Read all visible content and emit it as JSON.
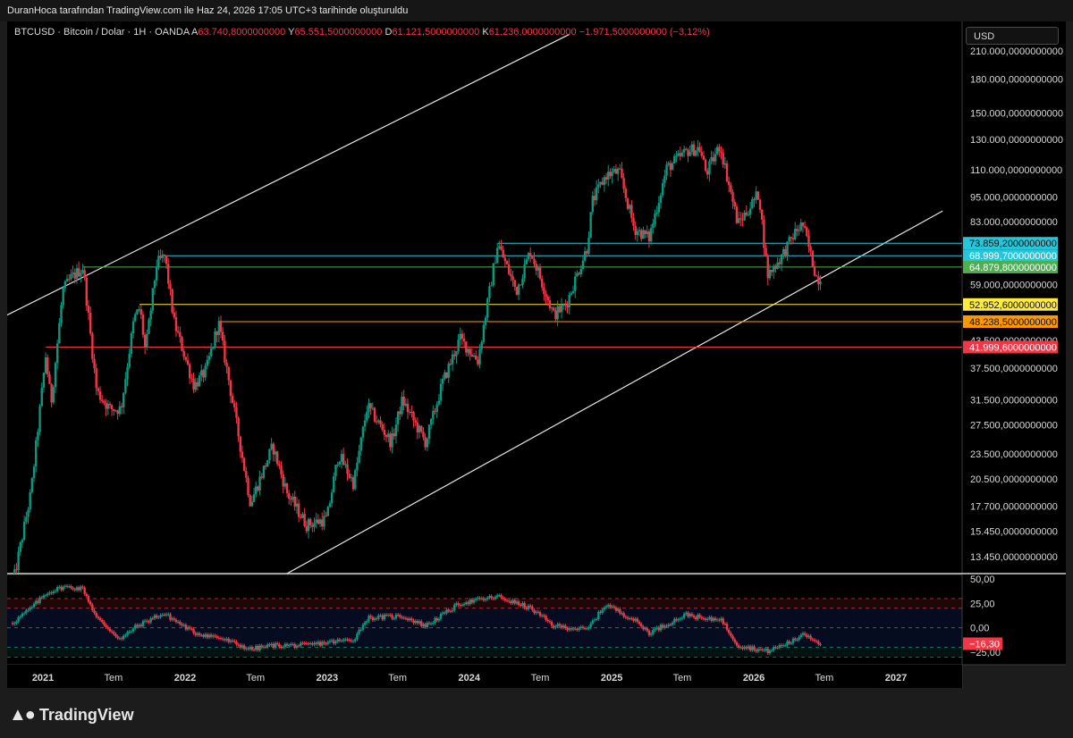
{
  "header": {
    "title": "DuranHoca tarafından TradingView.com ile Haz 24, 2026 17:05 UTC+3 tarihinde oluşturuldu"
  },
  "legend": {
    "symbol": "BTCUSD · Bitcoin / Dolar · 1H · OANDA",
    "open_label": "A",
    "open": "63.740,8000000000",
    "high_label": "Y",
    "high": "65.551,5000000000",
    "low_label": "D",
    "low": "61.121,5000000000",
    "close_label": "K",
    "close": "61.236,0000000000",
    "change": "−1.971,5000000000 (−3,12%)"
  },
  "toolbar": {
    "currency": "USD"
  },
  "branding": {
    "logo_icon": "tradingview-logo-icon",
    "name": "TradingView"
  },
  "chart_data": [
    {
      "type": "line",
      "title": "",
      "scale": "log",
      "y_ticks": [
        {
          "value": 210000,
          "label": "210.000,0000000000"
        },
        {
          "value": 180000,
          "label": "180.000,0000000000"
        },
        {
          "value": 150000,
          "label": "150.000,0000000000"
        },
        {
          "value": 130000,
          "label": "130.000,0000000000"
        },
        {
          "value": 110000,
          "label": "110.000,0000000000"
        },
        {
          "value": 95000,
          "label": "95.000,0000000000"
        },
        {
          "value": 83000,
          "label": "83.000,0000000000"
        },
        {
          "value": 59000,
          "label": "59.000,0000000000"
        },
        {
          "value": 43500,
          "label": "43.500,0000000000"
        },
        {
          "value": 37500,
          "label": "37.500,0000000000"
        },
        {
          "value": 31500,
          "label": "31.500,0000000000"
        },
        {
          "value": 27500,
          "label": "27.500,0000000000"
        },
        {
          "value": 23500,
          "label": "23.500,0000000000"
        },
        {
          "value": 20500,
          "label": "20.500,0000000000"
        },
        {
          "value": 17700,
          "label": "17.700,0000000000"
        },
        {
          "value": 15450,
          "label": "15.450,0000000000"
        },
        {
          "value": 13450,
          "label": "13.450,0000000000"
        }
      ],
      "levels": [
        {
          "value": 73859.2,
          "label": "73.859,2000000000",
          "color": "#26c6da",
          "text": "#0e0e0e",
          "from": "2024-03-14"
        },
        {
          "value": 68999.7,
          "label": "68.999,7000000000",
          "color": "#26c6da",
          "text": "#ffffff",
          "from": "2021-11-10"
        },
        {
          "value": 64879.8,
          "label": "64.879,8000000000",
          "color": "#4caf50",
          "text": "#ffffff",
          "from": "2021-04-14"
        },
        {
          "value": 52952.6,
          "label": "52.952,6000000000",
          "color": "#ffeb3b",
          "text": "#0e0e0e",
          "from": "2021-09-06"
        },
        {
          "value": 48238.5,
          "label": "48.238,5000000000",
          "color": "#ff9800",
          "text": "#0e0e0e",
          "from": "2022-03-28"
        },
        {
          "value": 41999.6,
          "label": "41.999,6000000000",
          "color": "#f23645",
          "text": "#ffffff",
          "from": "2021-01-08"
        }
      ],
      "trendlines": [
        {
          "x1": "2020-10-01",
          "y1": 50000,
          "x2": "2024-09-15",
          "y2": 230000,
          "color": "#e6e6e6"
        },
        {
          "x1": "2022-09-01",
          "y1": 12000,
          "x2": "2027-05-01",
          "y2": 88000,
          "color": "#e6e6e6"
        }
      ],
      "series": [
        {
          "kind": "candlestick",
          "points": [
            [
              "2020-10-15",
              11500
            ],
            [
              "2020-12-01",
              19000
            ],
            [
              "2021-01-08",
              40000
            ],
            [
              "2021-01-22",
              31000
            ],
            [
              "2021-02-21",
              57000
            ],
            [
              "2021-03-13",
              61000
            ],
            [
              "2021-04-14",
              64800
            ],
            [
              "2021-05-19",
              33000
            ],
            [
              "2021-06-22",
              30000
            ],
            [
              "2021-07-20",
              30000
            ],
            [
              "2021-08-23",
              49000
            ],
            [
              "2021-09-07",
              52000
            ],
            [
              "2021-09-21",
              41000
            ],
            [
              "2021-10-20",
              66000
            ],
            [
              "2021-11-10",
              68900
            ],
            [
              "2021-12-04",
              48000
            ],
            [
              "2022-01-24",
              34000
            ],
            [
              "2022-02-24",
              37000
            ],
            [
              "2022-03-28",
              48000
            ],
            [
              "2022-05-12",
              28000
            ],
            [
              "2022-06-18",
              18000
            ],
            [
              "2022-08-14",
              24500
            ],
            [
              "2022-09-20",
              19000
            ],
            [
              "2022-11-09",
              16000
            ],
            [
              "2022-12-31",
              16500
            ],
            [
              "2023-01-30",
              23500
            ],
            [
              "2023-03-10",
              20000
            ],
            [
              "2023-04-14",
              30500
            ],
            [
              "2023-06-15",
              25000
            ],
            [
              "2023-07-13",
              31500
            ],
            [
              "2023-09-11",
              25000
            ],
            [
              "2023-10-24",
              34500
            ],
            [
              "2023-12-08",
              44000
            ],
            [
              "2024-01-23",
              39000
            ],
            [
              "2024-03-14",
              73800
            ],
            [
              "2024-05-01",
              57000
            ],
            [
              "2024-06-06",
              71000
            ],
            [
              "2024-08-05",
              50000
            ],
            [
              "2024-09-06",
              53000
            ],
            [
              "2024-10-29",
              72000
            ],
            [
              "2024-11-13",
              93000
            ],
            [
              "2024-12-17",
              107000
            ],
            [
              "2025-01-20",
              109000
            ],
            [
              "2025-02-28",
              80000
            ],
            [
              "2025-04-07",
              76000
            ],
            [
              "2025-05-22",
              111000
            ],
            [
              "2025-07-14",
              122000
            ],
            [
              "2025-08-14",
              124000
            ],
            [
              "2025-09-01",
              108000
            ],
            [
              "2025-10-06",
              126000
            ],
            [
              "2025-11-21",
              82000
            ],
            [
              "2025-12-15",
              88000
            ],
            [
              "2026-01-14",
              97000
            ],
            [
              "2026-02-05",
              62000
            ],
            [
              "2026-03-10",
              68000
            ],
            [
              "2026-04-20",
              79000
            ],
            [
              "2026-05-06",
              82000
            ],
            [
              "2026-06-12",
              61000
            ],
            [
              "2026-06-24",
              61236
            ]
          ],
          "up_color": "#089981",
          "down_color": "#f23645"
        }
      ]
    },
    {
      "type": "line",
      "title": "",
      "y_ticks": [
        {
          "value": 50,
          "label": "50,00"
        },
        {
          "value": 25,
          "label": "25,00"
        },
        {
          "value": 0,
          "label": "0,00"
        },
        {
          "value": -25,
          "label": "−25,00"
        }
      ],
      "bands": [
        {
          "from": 20,
          "to": 30,
          "color": "#f23645"
        },
        {
          "from": -20,
          "to": 20,
          "color": "#2962ff"
        },
        {
          "from": -30,
          "to": -20,
          "color": "#089981"
        }
      ],
      "last_value": {
        "value": -16.3,
        "label": "−16,30",
        "color": "#f23645"
      },
      "series": [
        {
          "kind": "oscillator",
          "points": [
            [
              "2020-10-15",
              5
            ],
            [
              "2020-12-01",
              20
            ],
            [
              "2021-01-08",
              35
            ],
            [
              "2021-02-21",
              42
            ],
            [
              "2021-04-14",
              40
            ],
            [
              "2021-05-19",
              10
            ],
            [
              "2021-07-20",
              -12
            ],
            [
              "2021-08-23",
              0
            ],
            [
              "2021-10-20",
              12
            ],
            [
              "2021-11-10",
              14
            ],
            [
              "2022-01-24",
              -5
            ],
            [
              "2022-03-28",
              -10
            ],
            [
              "2022-06-18",
              -22
            ],
            [
              "2022-08-14",
              -18
            ],
            [
              "2022-11-09",
              -18
            ],
            [
              "2022-12-31",
              -15
            ],
            [
              "2023-03-10",
              -12
            ],
            [
              "2023-04-14",
              10
            ],
            [
              "2023-07-13",
              12
            ],
            [
              "2023-09-11",
              2
            ],
            [
              "2023-12-08",
              25
            ],
            [
              "2024-03-14",
              32
            ],
            [
              "2024-06-06",
              20
            ],
            [
              "2024-08-05",
              2
            ],
            [
              "2024-10-29",
              -2
            ],
            [
              "2024-12-17",
              24
            ],
            [
              "2025-02-28",
              8
            ],
            [
              "2025-04-07",
              -5
            ],
            [
              "2025-07-14",
              14
            ],
            [
              "2025-09-01",
              8
            ],
            [
              "2025-10-06",
              10
            ],
            [
              "2025-11-21",
              -18
            ],
            [
              "2026-02-05",
              -24
            ],
            [
              "2026-04-20",
              -12
            ],
            [
              "2026-05-06",
              -5
            ],
            [
              "2026-06-24",
              -16.3
            ]
          ],
          "up_color": "#089981",
          "down_color": "#f23645"
        }
      ]
    }
  ],
  "time_axis": [
    {
      "date": "2021-01-01",
      "label": "2021",
      "bold": true
    },
    {
      "date": "2021-07-01",
      "label": "Tem",
      "bold": false
    },
    {
      "date": "2022-01-01",
      "label": "2022",
      "bold": true
    },
    {
      "date": "2022-07-01",
      "label": "Tem",
      "bold": false
    },
    {
      "date": "2023-01-01",
      "label": "2023",
      "bold": true
    },
    {
      "date": "2023-07-01",
      "label": "Tem",
      "bold": false
    },
    {
      "date": "2024-01-01",
      "label": "2024",
      "bold": true
    },
    {
      "date": "2024-07-01",
      "label": "Tem",
      "bold": false
    },
    {
      "date": "2025-01-01",
      "label": "2025",
      "bold": true
    },
    {
      "date": "2025-07-01",
      "label": "Tem",
      "bold": false
    },
    {
      "date": "2026-01-01",
      "label": "2026",
      "bold": true
    },
    {
      "date": "2026-07-01",
      "label": "Tem",
      "bold": false
    },
    {
      "date": "2027-01-01",
      "label": "2027",
      "bold": true
    }
  ]
}
